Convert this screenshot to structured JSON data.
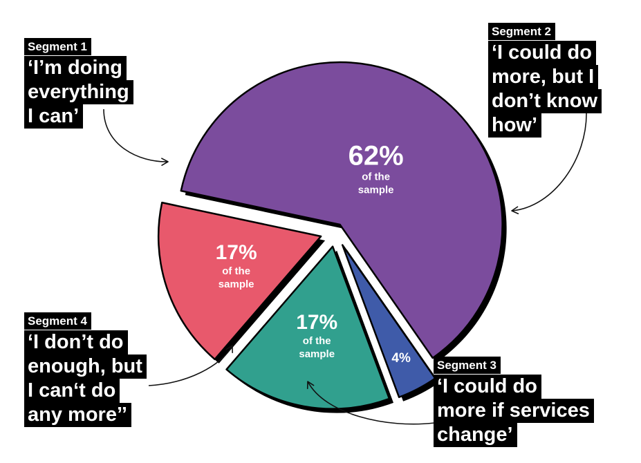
{
  "chart_data": {
    "type": "pie",
    "title": "",
    "slices": [
      {
        "segment": "Segment 1",
        "label": "‘I’m doing everything I can’",
        "value": 17,
        "percent_text": "17%",
        "sub_text": "of the sample",
        "color": "#e8596c"
      },
      {
        "segment": "Segment 2",
        "label": "‘I could do more, but I don’t know how’",
        "value": 62,
        "percent_text": "62%",
        "sub_text": "of the sample",
        "color": "#7b4c9d"
      },
      {
        "segment": "Segment 3",
        "label": "‘I could do more if services change’",
        "value": 4,
        "percent_text": "4%",
        "sub_text": "",
        "color": "#3f5ba9"
      },
      {
        "segment": "Segment 4",
        "label": "‘I don’t do enough, but I can‘t do any more’’",
        "value": 17,
        "percent_text": "17%",
        "sub_text": "of the sample",
        "color": "#31a08e"
      }
    ],
    "legend": "none",
    "slice_outline": "#000000"
  },
  "callouts": {
    "seg1": {
      "title": "Segment 1",
      "lines": [
        "‘I’m doing",
        "everything",
        "I can’"
      ]
    },
    "seg2": {
      "title": "Segment 2",
      "lines": [
        "‘I could do",
        "more, but I",
        "don’t know",
        "how’"
      ]
    },
    "seg3": {
      "title": "Segment 3",
      "lines": [
        "‘I could do",
        "more if services",
        "change’"
      ]
    },
    "seg4": {
      "title": "Segment 4",
      "lines": [
        "‘I don’t do",
        "enough, but",
        "I can‘t do",
        "any more’’"
      ]
    }
  }
}
